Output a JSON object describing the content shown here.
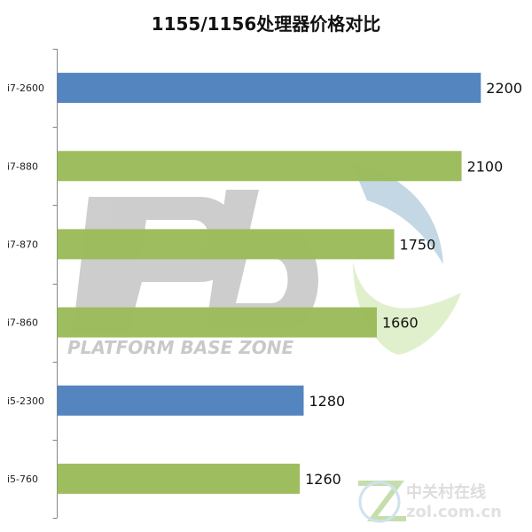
{
  "chart_data": {
    "type": "bar",
    "orientation": "horizontal",
    "title": "1155/1156处理器价格对比",
    "categories": [
      "i7-2600",
      "i7-880",
      "i7-870",
      "i7-860",
      "i5-2300",
      "i5-760"
    ],
    "values": [
      2200,
      2100,
      1750,
      1660,
      1280,
      1260
    ],
    "xlim": [
      0,
      2300
    ],
    "bar_colors": [
      "#4f81bd",
      "#9bbb59",
      "#9bbb59",
      "#9bbb59",
      "#4f81bd",
      "#9bbb59"
    ],
    "grid": false,
    "legend": "none"
  },
  "watermark": {
    "brand_text": "PLATFORM BASE ZONE",
    "site_name": "中关村在线",
    "site_url": "zol.com.cn"
  }
}
